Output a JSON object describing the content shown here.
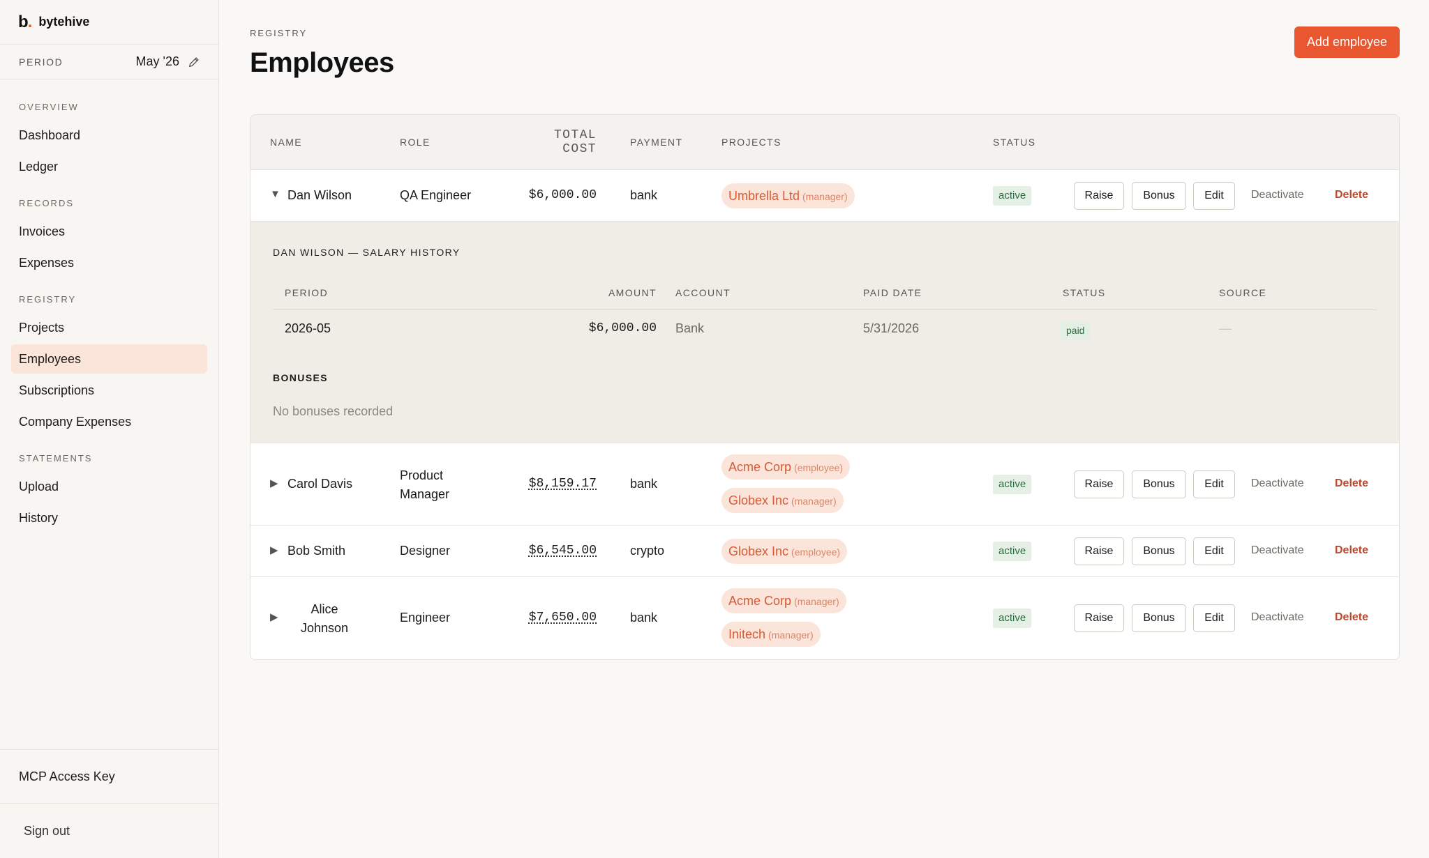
{
  "brand": {
    "mark": "b",
    "name": "bytehive"
  },
  "period": {
    "label": "PERIOD",
    "value": "May '26"
  },
  "nav": {
    "sections": [
      {
        "title": "OVERVIEW",
        "items": [
          "Dashboard",
          "Ledger"
        ]
      },
      {
        "title": "RECORDS",
        "items": [
          "Invoices",
          "Expenses"
        ]
      },
      {
        "title": "REGISTRY",
        "items": [
          "Projects",
          "Employees",
          "Subscriptions",
          "Company Expenses"
        ]
      },
      {
        "title": "STATEMENTS",
        "items": [
          "Upload",
          "History"
        ]
      }
    ],
    "active": "Employees"
  },
  "footer": {
    "mcp_key": "MCP Access Key",
    "sign_out": "Sign out"
  },
  "page": {
    "eyebrow": "REGISTRY",
    "title": "Employees",
    "add_button": "Add employee"
  },
  "table": {
    "headers": {
      "name": "NAME",
      "role": "ROLE",
      "cost_line1": "TOTAL",
      "cost_line2": "COST",
      "payment": "PAYMENT",
      "projects": "PROJECTS",
      "status": "STATUS"
    },
    "actions": {
      "raise": "Raise",
      "bonus": "Bonus",
      "edit": "Edit",
      "deactivate": "Deactivate",
      "delete": "Delete"
    },
    "rows": [
      {
        "name": "Dan Wilson",
        "role": "QA Engineer",
        "cost": "$6,000.00",
        "payment": "bank",
        "projects": [
          {
            "name": "Umbrella Ltd",
            "role": "(manager)"
          }
        ],
        "status": "active",
        "expanded": true
      },
      {
        "name": "Carol Davis",
        "role_line1": "Product",
        "role_line2": "Manager",
        "cost": "$8,159.17",
        "payment": "bank",
        "projects": [
          {
            "name": "Acme Corp",
            "role": "(employee)"
          },
          {
            "name": "Globex Inc",
            "role": "(manager)"
          }
        ],
        "status": "active"
      },
      {
        "name": "Bob Smith",
        "role": "Designer",
        "cost": "$6,545.00",
        "payment": "crypto",
        "projects": [
          {
            "name": "Globex Inc",
            "role": "(employee)"
          }
        ],
        "status": "active"
      },
      {
        "name_line1": "Alice",
        "name_line2": "Johnson",
        "role": "Engineer",
        "cost": "$7,650.00",
        "payment": "bank",
        "projects": [
          {
            "name": "Acme Corp",
            "role": "(manager)"
          },
          {
            "name": "Initech",
            "role": "(manager)"
          }
        ],
        "status": "active"
      }
    ]
  },
  "salary_history": {
    "title": "DAN WILSON — SALARY HISTORY",
    "headers": {
      "period": "PERIOD",
      "amount": "AMOUNT",
      "account": "ACCOUNT",
      "paid_date": "PAID DATE",
      "status": "STATUS",
      "source": "SOURCE"
    },
    "row": {
      "period": "2026-05",
      "amount": "$6,000.00",
      "account": "Bank",
      "paid_date": "5/31/2026",
      "status": "paid",
      "source": "—"
    },
    "bonuses_title": "BONUSES",
    "bonuses_empty": "No bonuses recorded"
  },
  "colors": {
    "accent": "#e8572f",
    "active_nav": "#fbe4da",
    "status_green": "#2e6b3e",
    "delete_red": "#c0472a"
  },
  "icons": {
    "period_edit": "pencil-icon",
    "row_expanded": "caret-down-icon",
    "row_collapsed": "caret-right-icon"
  }
}
